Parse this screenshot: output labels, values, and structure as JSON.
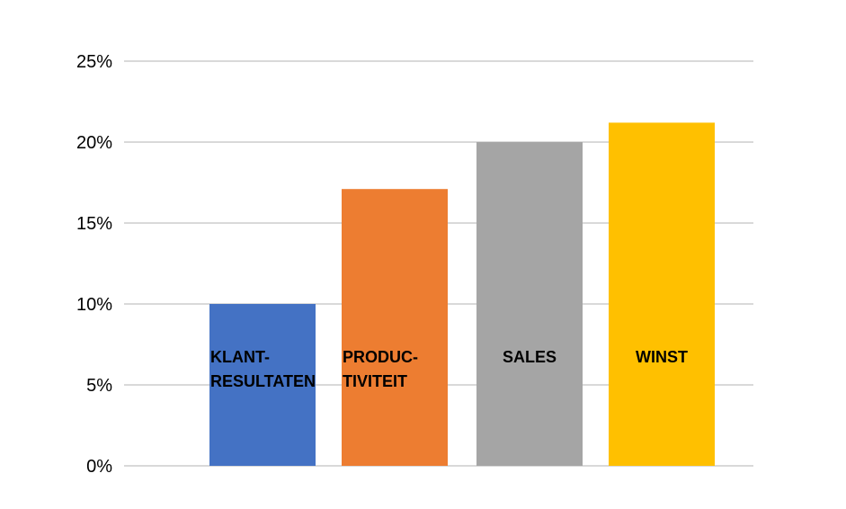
{
  "chart_data": {
    "type": "bar",
    "title": "",
    "xlabel": "",
    "ylabel": "",
    "ylim": [
      0,
      0.25
    ],
    "y_ticks": [
      {
        "value": 0,
        "label": "0%"
      },
      {
        "value": 0.05,
        "label": "5%"
      },
      {
        "value": 0.1,
        "label": "10%"
      },
      {
        "value": 0.15,
        "label": "15%"
      },
      {
        "value": 0.2,
        "label": "20%"
      },
      {
        "value": 0.25,
        "label": "25%"
      }
    ],
    "grid": true,
    "legend": "none",
    "categories": [
      {
        "lines": [
          "KLANT-",
          "RESULTATEN"
        ],
        "value": 0.1,
        "color": "#4472C4"
      },
      {
        "lines": [
          "PRODUC-",
          "TIVITEIT"
        ],
        "value": 0.171,
        "color": "#ED7D31"
      },
      {
        "lines": [
          "SALES"
        ],
        "value": 0.2,
        "color": "#A5A5A5"
      },
      {
        "lines": [
          "WINST"
        ],
        "value": 0.212,
        "color": "#FFC000"
      }
    ],
    "gridline_color": "#D9D9D9"
  }
}
